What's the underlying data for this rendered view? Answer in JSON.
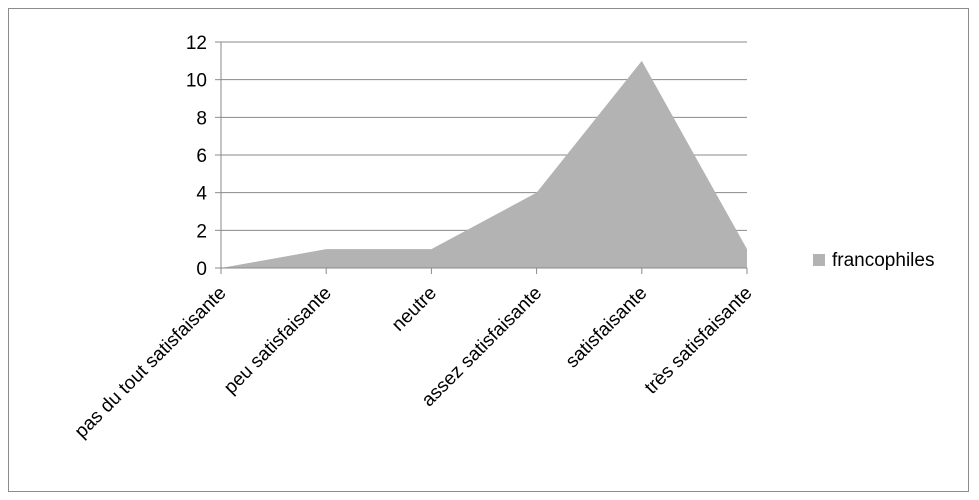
{
  "chart_data": {
    "type": "area",
    "categories": [
      "pas du tout satisfaisante",
      "peu satisfaisante",
      "neutre",
      "assez satisfaisante",
      "satisfaisante",
      "très satisfaisante"
    ],
    "series": [
      {
        "name": "francophiles",
        "values": [
          0,
          1,
          1,
          4,
          11,
          1
        ],
        "color": "#b3b3b3"
      }
    ],
    "ylim": [
      0,
      12
    ],
    "yticks": [
      0,
      2,
      4,
      6,
      8,
      10,
      12
    ],
    "grid": true,
    "legend_position": "right",
    "title": "",
    "xlabel": "",
    "ylabel": ""
  }
}
